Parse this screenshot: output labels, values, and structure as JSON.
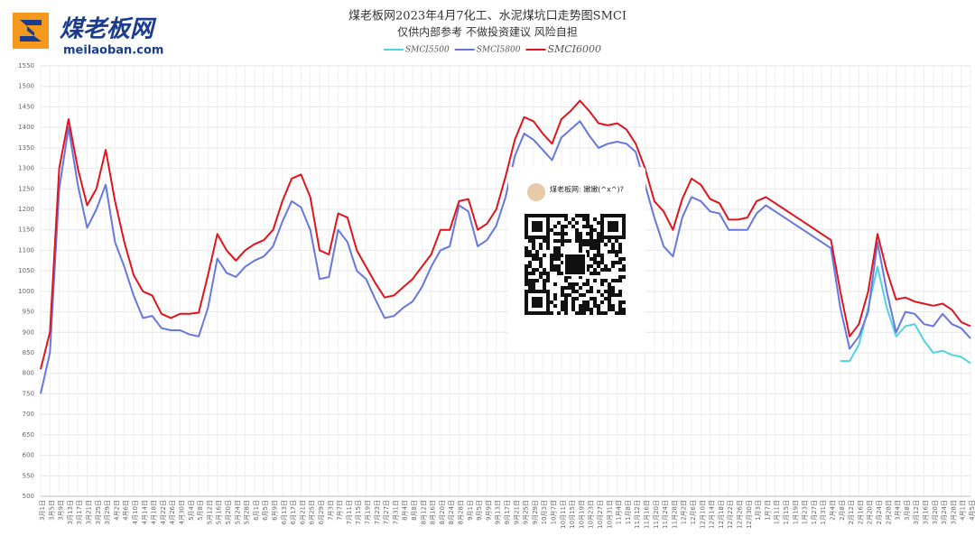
{
  "logo": {
    "name": "煤老板网",
    "url": "meilaoban.com"
  },
  "qr_card": {
    "title": "煤老板网: 嫩嫩(^x^)?"
  },
  "chart_data": {
    "type": "line",
    "title": "煤老板网2023年4月7化工、水泥煤坑口走势图SMCI",
    "subtitle": "仅供内部参考 不做投资建议 风险自担",
    "categories": [
      "3月1日",
      "3月5日",
      "3月9日",
      "3月13日",
      "3月17日",
      "3月21日",
      "3月25日",
      "3月29日",
      "4月2日",
      "4月6日",
      "4月10日",
      "4月14日",
      "4月18日",
      "4月22日",
      "4月26日",
      "4月30日",
      "5月4日",
      "5月8日",
      "5月12日",
      "5月16日",
      "5月20日",
      "5月24日",
      "5月28日",
      "6月1日",
      "6月5日",
      "6月9日",
      "6月13日",
      "6月17日",
      "6月21日",
      "6月25日",
      "6月29日",
      "7月3日",
      "7月7日",
      "7月11日",
      "7月15日",
      "7月19日",
      "7月23日",
      "7月27日",
      "7月31日",
      "8月4日",
      "8月8日",
      "8月12日",
      "8月16日",
      "8月20日",
      "8月24日",
      "8月28日",
      "9月1日",
      "9月5日",
      "9月9日",
      "9月13日",
      "9月17日",
      "9月21日",
      "9月25日",
      "9月29日",
      "10月3日",
      "10月7日",
      "10月11日",
      "10月15日",
      "10月19日",
      "10月23日",
      "10月27日",
      "10月31日",
      "11月4日",
      "11月8日",
      "11月12日",
      "11月16日",
      "11月20日",
      "11月24日",
      "11月28日",
      "12月2日",
      "12月6日",
      "12月10日",
      "12月14日",
      "12月18日",
      "12月22日",
      "12月26日",
      "12月30日",
      "1月3日",
      "1月7日",
      "1月11日",
      "1月15日",
      "1月19日",
      "1月23日",
      "1月27日",
      "1月31日",
      "2月4日",
      "2月8日",
      "2月12日",
      "2月16日",
      "2月20日",
      "2月24日",
      "2月28日",
      "3月4日",
      "3月8日",
      "3月12日",
      "3月16日",
      "3月20日",
      "3月24日",
      "3月28日",
      "4月1日",
      "4月5日"
    ],
    "series": [
      {
        "name": "SMCI5500",
        "color": "#4fd3e3",
        "values": [
          null,
          null,
          null,
          null,
          null,
          null,
          null,
          null,
          null,
          null,
          null,
          null,
          null,
          null,
          null,
          null,
          null,
          null,
          null,
          null,
          null,
          null,
          null,
          null,
          null,
          null,
          null,
          null,
          null,
          null,
          null,
          null,
          null,
          null,
          null,
          null,
          null,
          null,
          null,
          null,
          null,
          null,
          null,
          null,
          null,
          null,
          null,
          null,
          null,
          null,
          null,
          null,
          null,
          null,
          null,
          null,
          null,
          null,
          null,
          null,
          null,
          null,
          null,
          null,
          null,
          null,
          null,
          null,
          null,
          null,
          null,
          null,
          null,
          null,
          null,
          null,
          null,
          null,
          null,
          null,
          null,
          null,
          null,
          null,
          null,
          null,
          830,
          830,
          870,
          960,
          1060,
          960,
          890,
          915,
          920,
          880,
          850,
          855,
          845,
          840,
          825
        ]
      },
      {
        "name": "SMCI5800",
        "color": "#6677e0",
        "values": [
          750,
          850,
          1250,
          1400,
          1260,
          1155,
          1200,
          1260,
          1120,
          1060,
          990,
          935,
          940,
          910,
          905,
          905,
          895,
          890,
          960,
          1080,
          1045,
          1035,
          1060,
          1075,
          1085,
          1110,
          1170,
          1220,
          1205,
          1150,
          1030,
          1035,
          1150,
          1120,
          1050,
          1030,
          980,
          935,
          940,
          960,
          975,
          1010,
          1060,
          1100,
          1110,
          1210,
          1195,
          1110,
          1125,
          1160,
          1230,
          1330,
          1385,
          1370,
          1345,
          1320,
          1375,
          1395,
          1415,
          1380,
          1350,
          1360,
          1365,
          1360,
          1340,
          1260,
          1180,
          1110,
          1085,
          1180,
          1230,
          1220,
          1195,
          1190,
          1150,
          1150,
          1150,
          1190,
          1210,
          1195,
          1180,
          1165,
          1150,
          1135,
          1120,
          1105,
          960,
          860,
          890,
          950,
          1120,
          1000,
          900,
          950,
          945,
          920,
          915,
          945,
          920,
          910,
          885
        ]
      },
      {
        "name": "SMCI6000",
        "color": "#e0141c",
        "values": [
          810,
          900,
          1300,
          1420,
          1300,
          1210,
          1250,
          1345,
          1220,
          1120,
          1040,
          1000,
          990,
          945,
          935,
          945,
          945,
          948,
          1040,
          1140,
          1100,
          1075,
          1100,
          1115,
          1125,
          1150,
          1220,
          1275,
          1285,
          1230,
          1100,
          1090,
          1190,
          1180,
          1100,
          1060,
          1020,
          985,
          990,
          1010,
          1030,
          1060,
          1090,
          1150,
          1150,
          1220,
          1225,
          1150,
          1165,
          1200,
          1280,
          1370,
          1425,
          1415,
          1385,
          1360,
          1420,
          1440,
          1465,
          1440,
          1410,
          1405,
          1410,
          1395,
          1360,
          1300,
          1220,
          1195,
          1150,
          1225,
          1275,
          1260,
          1225,
          1215,
          1175,
          1175,
          1180,
          1220,
          1230,
          1215,
          1200,
          1185,
          1170,
          1155,
          1140,
          1125,
          1000,
          890,
          920,
          1000,
          1140,
          1050,
          980,
          985,
          975,
          970,
          965,
          970,
          955,
          925,
          915
        ]
      }
    ],
    "ylim": [
      500,
      1550
    ],
    "yticks": [
      500,
      550,
      600,
      650,
      700,
      750,
      800,
      850,
      900,
      950,
      1000,
      1050,
      1100,
      1150,
      1200,
      1250,
      1300,
      1350,
      1400,
      1450,
      1500,
      1550
    ],
    "grid": true,
    "legend": "top"
  }
}
